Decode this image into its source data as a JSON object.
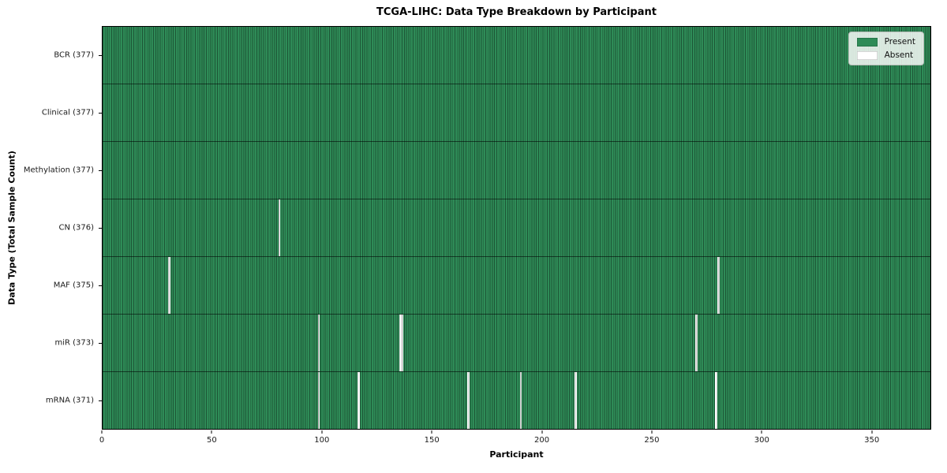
{
  "chart_data": {
    "type": "heatmap",
    "title": "TCGA-LIHC: Data Type Breakdown by Participant",
    "xlabel": "Participant",
    "ylabel": "Data Type (Total Sample Count)",
    "n_participants": 377,
    "x_ticks": [
      0,
      50,
      100,
      150,
      200,
      250,
      300,
      350
    ],
    "grid": false,
    "legend_position": "upper right",
    "colors": {
      "present": "#2e8b57",
      "absent": "#ffffff",
      "cell_edge": "#1e5c3a",
      "legend_bg": "#e6eae6"
    },
    "legend": [
      {
        "label": "Present",
        "color": "#2e8b57"
      },
      {
        "label": "Absent",
        "color": "#ffffff"
      }
    ],
    "rows": [
      {
        "name": "bcr",
        "label": "BCR (377)",
        "total": 377,
        "absent_participants": []
      },
      {
        "name": "clinical",
        "label": "Clinical (377)",
        "total": 377,
        "absent_participants": []
      },
      {
        "name": "methylation",
        "label": "Methylation (377)",
        "total": 377,
        "absent_participants": []
      },
      {
        "name": "cn",
        "label": "CN (376)",
        "total": 376,
        "absent_participants": [
          80
        ]
      },
      {
        "name": "maf",
        "label": "MAF (375)",
        "total": 375,
        "absent_participants": [
          30,
          280
        ]
      },
      {
        "name": "mir",
        "label": "miR (373)",
        "total": 373,
        "absent_participants": [
          98,
          135,
          136,
          270
        ]
      },
      {
        "name": "mrna",
        "label": "mRNA (371)",
        "total": 371,
        "absent_participants": [
          98,
          116,
          166,
          190,
          215,
          279
        ]
      }
    ]
  }
}
